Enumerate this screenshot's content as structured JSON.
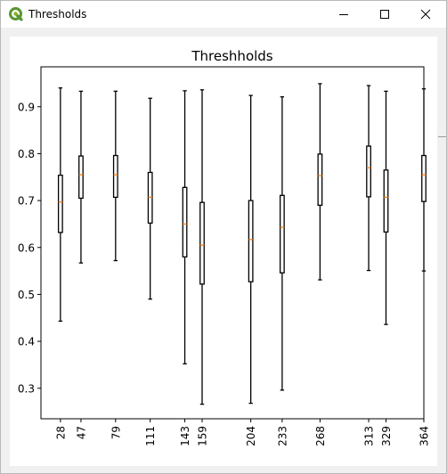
{
  "window": {
    "title": "Thresholds",
    "icon": "qgis-logo-icon",
    "controls": [
      "minimize-icon",
      "maximize-icon",
      "close-icon"
    ]
  },
  "chart_data": {
    "type": "boxplot",
    "title": "Threshholds",
    "xlabel": "",
    "ylabel": "",
    "ylim": [
      0.235,
      0.985
    ],
    "yticks": [
      0.3,
      0.4,
      0.5,
      0.6,
      0.7,
      0.8,
      0.9
    ],
    "ytick_labels": [
      "0.3",
      "0.4",
      "0.5",
      "0.6",
      "0.7",
      "0.8",
      "0.9"
    ],
    "xlim": [
      10,
      364
    ],
    "x_tick_labels": [
      "28",
      "47",
      "79",
      "111",
      "143",
      "159",
      "204",
      "233",
      "268",
      "313",
      "329",
      "364"
    ],
    "boxes": [
      {
        "x": 28,
        "whislo": 0.443,
        "q1": 0.632,
        "med": 0.697,
        "q3": 0.754,
        "whishi": 0.94
      },
      {
        "x": 47,
        "whislo": 0.567,
        "q1": 0.705,
        "med": 0.755,
        "q3": 0.795,
        "whishi": 0.933
      },
      {
        "x": 79,
        "whislo": 0.572,
        "q1": 0.707,
        "med": 0.755,
        "q3": 0.796,
        "whishi": 0.933
      },
      {
        "x": 111,
        "whislo": 0.49,
        "q1": 0.652,
        "med": 0.707,
        "q3": 0.76,
        "whishi": 0.918
      },
      {
        "x": 143,
        "whislo": 0.352,
        "q1": 0.58,
        "med": 0.65,
        "q3": 0.728,
        "whishi": 0.934
      },
      {
        "x": 159,
        "whislo": 0.266,
        "q1": 0.522,
        "med": 0.605,
        "q3": 0.696,
        "whishi": 0.936
      },
      {
        "x": 204,
        "whislo": 0.268,
        "q1": 0.527,
        "med": 0.617,
        "q3": 0.7,
        "whishi": 0.924
      },
      {
        "x": 233,
        "whislo": 0.296,
        "q1": 0.546,
        "med": 0.643,
        "q3": 0.711,
        "whishi": 0.921
      },
      {
        "x": 268,
        "whislo": 0.531,
        "q1": 0.69,
        "med": 0.753,
        "q3": 0.799,
        "whishi": 0.949
      },
      {
        "x": 313,
        "whislo": 0.551,
        "q1": 0.708,
        "med": 0.77,
        "q3": 0.816,
        "whishi": 0.945
      },
      {
        "x": 329,
        "whislo": 0.436,
        "q1": 0.633,
        "med": 0.707,
        "q3": 0.765,
        "whishi": 0.933
      },
      {
        "x": 364,
        "whislo": 0.55,
        "q1": 0.698,
        "med": 0.755,
        "q3": 0.796,
        "whishi": 0.938
      }
    ],
    "colors": {
      "box": "#000000",
      "median": "#ff7f0e",
      "axis": "#000000"
    },
    "grid": false,
    "legend": "none"
  }
}
